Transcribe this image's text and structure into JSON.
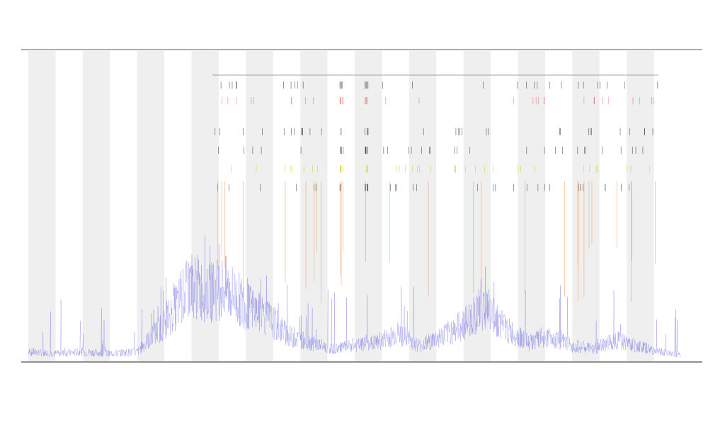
{
  "chart_data": {
    "type": "line",
    "title": "",
    "subtitle": [
      "",
      ""
    ],
    "xlabel": "",
    "ylabel": "",
    "xlim": [
      0,
      1200
    ],
    "ylim": [
      0,
      100
    ],
    "grid": false,
    "background_bands": true,
    "legend_placement": "top-left",
    "legend": [
      "",
      "",
      "",
      ""
    ],
    "colors": {
      "line": "#3a3adf",
      "rug_black": "#111111",
      "rug_red": "#e05050",
      "rug_yellow": "#c9c400",
      "rug_orange": "#e07020",
      "band": "#efefef",
      "axis": "#555555"
    },
    "series": [
      {
        "name": "",
        "x": [
          0,
          50,
          100,
          150,
          200,
          250,
          300,
          330,
          360,
          400,
          440,
          480,
          520,
          560,
          600,
          640,
          680,
          720,
          760,
          800,
          840,
          880,
          920,
          960,
          1000,
          1040,
          1080,
          1120,
          1160,
          1200
        ],
        "values": [
          3,
          2.5,
          3,
          2.5,
          3,
          12,
          25,
          22,
          24,
          18,
          14,
          8,
          6,
          4,
          5,
          6,
          9,
          5,
          8,
          12,
          18,
          10,
          6,
          8,
          5,
          4,
          7,
          5,
          3,
          2
        ]
      }
    ],
    "rug_rows": [
      {
        "label": "",
        "y": 89
      },
      {
        "label": "",
        "y": 84
      },
      {
        "label": "",
        "y": 74
      },
      {
        "label": "",
        "y": 68
      },
      {
        "label": "",
        "y": 62
      },
      {
        "label": "",
        "y": 56
      }
    ]
  }
}
